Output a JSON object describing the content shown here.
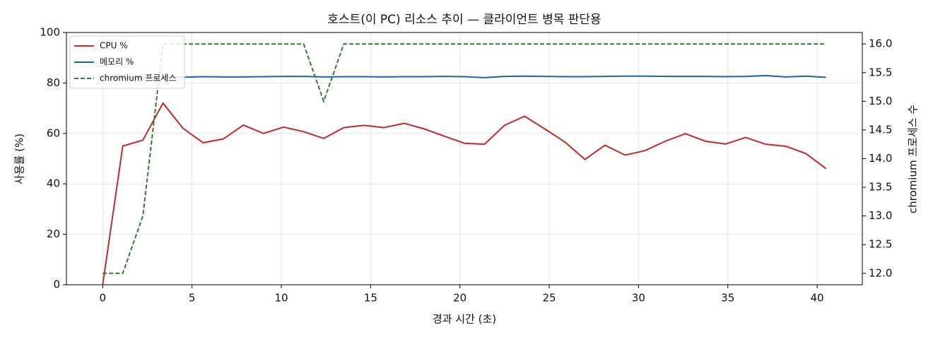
{
  "chart_data": {
    "type": "line",
    "title": "호스트(이 PC) 리소스 추이 — 클라이언트 병목 판단용",
    "x_label": "경과 시간 (초)",
    "y_label": "사용률 (%)",
    "y2_label": "chromium 프로세스 수",
    "x": [
      0,
      1.125,
      2.25,
      3.375,
      4.5,
      5.625,
      6.75,
      7.875,
      9,
      10.125,
      11.25,
      12.375,
      13.5,
      14.625,
      15.75,
      16.875,
      18,
      19.125,
      20.25,
      21.375,
      22.5,
      23.625,
      24.75,
      25.875,
      27,
      28.125,
      29.25,
      30.375,
      31.5,
      32.625,
      33.75,
      34.875,
      36,
      37.125,
      38.25,
      39.375,
      40.5
    ],
    "series": [
      {
        "name": "CPU %",
        "color": "#c62828",
        "values": [
          0,
          55,
          57.3,
          72,
          62,
          56.3,
          57.8,
          63.3,
          60,
          62.5,
          60.7,
          58,
          62.3,
          63.2,
          62.3,
          64,
          61.8,
          58.9,
          56.1,
          55.7,
          63.2,
          66.8,
          61.8,
          56.6,
          49.7,
          55.3,
          51.4,
          53.2,
          56.9,
          59.9,
          56.9,
          55.8,
          58.4,
          55.7,
          54.9,
          52,
          46
        ]
      },
      {
        "name": "메모리 %",
        "color": "#1565c0",
        "values": [
          82,
          82,
          82,
          82.2,
          82.3,
          82.5,
          82.4,
          82.4,
          82.5,
          82.6,
          82.6,
          82.4,
          82.5,
          82.5,
          82.4,
          82.5,
          82.5,
          82.6,
          82.5,
          82.1,
          82.6,
          82.7,
          82.6,
          82.5,
          82.5,
          82.6,
          82.7,
          82.7,
          82.6,
          82.6,
          82.6,
          82.5,
          82.6,
          82.9,
          82.4,
          82.7,
          82.2
        ]
      },
      {
        "name": "chromium 프로세스",
        "color": "#2e7d32",
        "dashed": true,
        "axis": "y2",
        "values": [
          12,
          12,
          13,
          16,
          16,
          16,
          16,
          16,
          16,
          16,
          16,
          15,
          16,
          16,
          16,
          16,
          16,
          16,
          16,
          16,
          16,
          16,
          16,
          16,
          16,
          16,
          16,
          16,
          16,
          16,
          16,
          16,
          16,
          16,
          16,
          16,
          16
        ]
      }
    ],
    "xlim": [
      -2.03,
      42.53
    ],
    "xticks": [
      0,
      5,
      10,
      15,
      20,
      25,
      30,
      35,
      40
    ],
    "ylim": [
      0,
      100
    ],
    "yticks": [
      0,
      20,
      40,
      60,
      80,
      100
    ],
    "y2lim": [
      11.8,
      16.2
    ],
    "y2ticks": [
      {
        "value": 12,
        "label": "12.0"
      },
      {
        "value": 12.5,
        "label": "12.5"
      },
      {
        "value": 13,
        "label": "13.0"
      },
      {
        "value": 13.5,
        "label": "13.5"
      },
      {
        "value": 14,
        "label": "14.0"
      },
      {
        "value": 14.5,
        "label": "14.5"
      },
      {
        "value": 15,
        "label": "15.0"
      },
      {
        "value": 15.5,
        "label": "15.5"
      },
      {
        "value": 16,
        "label": "16.0"
      }
    ],
    "grid": true,
    "legend": "upper-left"
  }
}
